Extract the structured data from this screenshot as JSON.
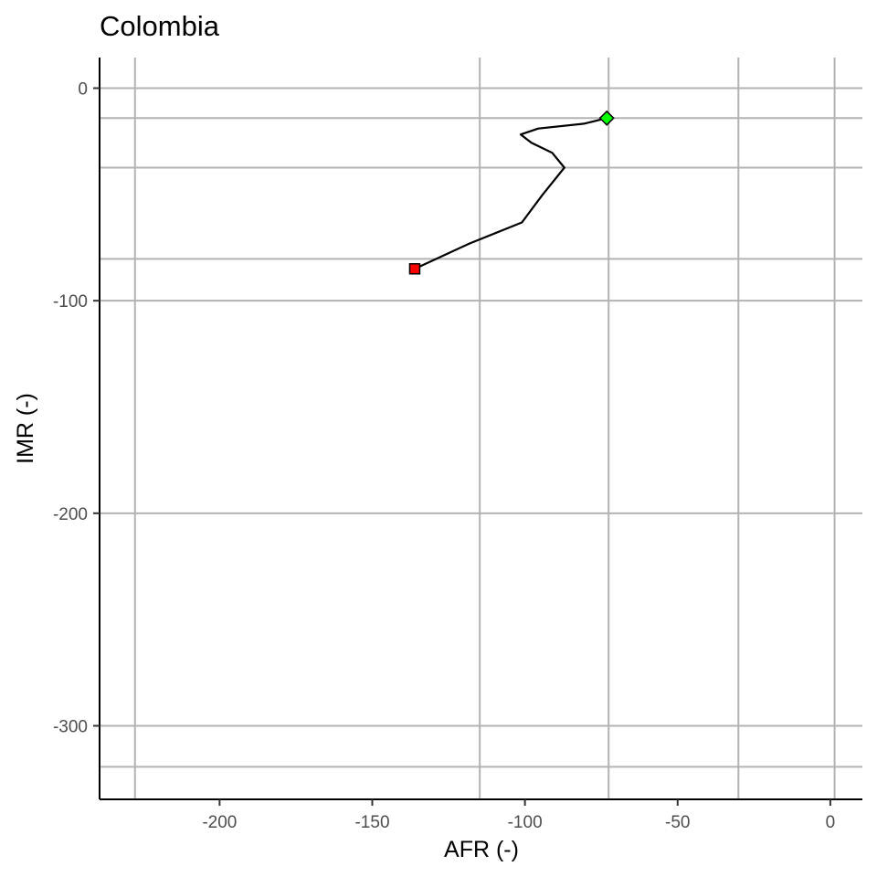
{
  "chart_data": {
    "type": "line",
    "title": "Colombia",
    "xlabel": "AFR (-)",
    "ylabel": "IMR (-)",
    "xlim": [
      -239.3,
      10.5
    ],
    "ylim": [
      -334.6,
      14.4
    ],
    "x_ticks": [
      -200,
      -150,
      -100,
      -50,
      0
    ],
    "y_ticks": [
      0,
      -100,
      -200,
      -300
    ],
    "x_gridlines": [
      -227.7,
      -114.8,
      -72.6,
      -30.1,
      1.4
    ],
    "y_gridlines": [
      -14.1,
      -37.4,
      -80.3,
      -319.3
    ],
    "grid": true,
    "series": [
      {
        "x": [
          -136.1,
          -118.2,
          -101.0,
          -94.4,
          -87.1,
          -91.1,
          -97.9,
          -101.4,
          -95.6,
          -80.7,
          -73.2
        ],
        "y": [
          -85.0,
          -73.1,
          -63.2,
          -50.4,
          -37.4,
          -30.4,
          -25.7,
          -21.8,
          -19.0,
          -16.7,
          -14.1
        ]
      }
    ],
    "start_point": {
      "x": -136.1,
      "y": -85.0,
      "shape": "square",
      "color": "#ff0000"
    },
    "end_point": {
      "x": -73.2,
      "y": -14.1,
      "shape": "diamond",
      "color": "#00ff00"
    },
    "colors": {
      "line": "#000000",
      "grid": "#b3b3b3"
    }
  }
}
